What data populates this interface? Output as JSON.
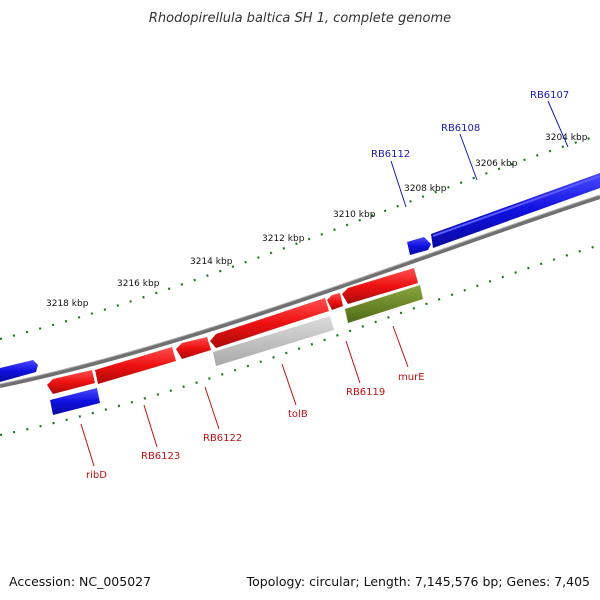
{
  "title": "Rhodopirellula baltica SH 1, complete genome",
  "footer": {
    "accession": "Accession: NC_005027",
    "summary": "Topology: circular; Length: 7,145,576 bp; Genes: 7,405"
  },
  "colors": {
    "forward_strand": "#1010e0",
    "reverse_strand": "#ee1111",
    "label_forward": "#1a1ab4",
    "label_reverse": "#bb1111",
    "tick_minor": "#1a7a1a",
    "tick_major": "#107010",
    "backbone": "#808080",
    "gray_feature": "#c8c8c8",
    "green_feature": "#6a8a20"
  },
  "scale_labels": [
    "3218 kbp",
    "3216 kbp",
    "3214 kbp",
    "3212 kbp",
    "3210 kbp",
    "3208 kbp",
    "3206 kbp",
    "3204 kbp"
  ],
  "gene_labels": {
    "forward": [
      "RB6112",
      "RB6108",
      "RB6107"
    ],
    "reverse": [
      "ribD",
      "RB6123",
      "RB6122",
      "tolB",
      "RB6119",
      "murE"
    ]
  }
}
